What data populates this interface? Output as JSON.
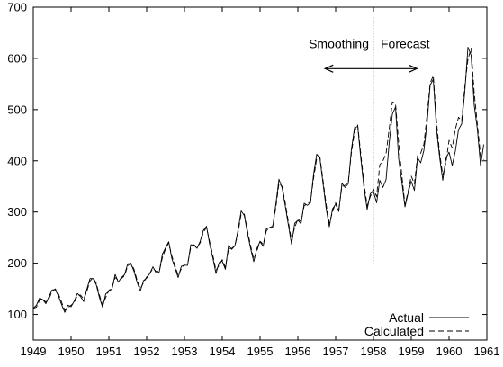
{
  "chart_data": {
    "type": "line",
    "title": "",
    "xlabel": "",
    "ylabel": "",
    "xlim": [
      1949,
      1961
    ],
    "ylim": [
      50,
      700
    ],
    "x_ticks": [
      "1949",
      "1950",
      "1951",
      "1952",
      "1953",
      "1954",
      "1955",
      "1956",
      "1957",
      "1958",
      "1959",
      "1960",
      "1961"
    ],
    "y_ticks": [
      "100",
      "200",
      "300",
      "400",
      "500",
      "600",
      "700"
    ],
    "legend_position": "bottom-right",
    "x_start": 1949,
    "x_step": 0.0833333,
    "series": [
      {
        "name": "Actual",
        "style": "solid",
        "values": [
          112,
          118,
          132,
          129,
          121,
          135,
          148,
          148,
          136,
          119,
          104,
          118,
          115,
          126,
          141,
          135,
          125,
          149,
          170,
          170,
          158,
          133,
          114,
          140,
          145,
          150,
          178,
          163,
          172,
          178,
          199,
          199,
          184,
          162,
          146,
          166,
          171,
          180,
          193,
          181,
          183,
          218,
          230,
          242,
          209,
          191,
          172,
          194,
          196,
          196,
          236,
          235,
          229,
          243,
          264,
          272,
          237,
          211,
          180,
          201,
          204,
          188,
          235,
          227,
          234,
          264,
          302,
          293,
          259,
          229,
          203,
          229,
          242,
          233,
          267,
          269,
          270,
          315,
          364,
          347,
          312,
          274,
          237,
          278,
          284,
          277,
          317,
          313,
          318,
          374,
          413,
          405,
          355,
          306,
          271,
          306,
          315,
          301,
          356,
          348,
          355,
          422,
          465,
          467,
          404,
          347,
          305,
          336,
          340,
          318,
          362,
          348,
          363,
          435,
          491,
          505,
          404,
          359,
          310,
          337,
          360,
          342,
          406,
          396,
          420,
          472,
          548,
          559,
          463,
          407,
          362,
          405,
          417,
          391,
          419,
          461,
          472,
          535,
          622,
          606,
          508,
          461,
          390,
          432
        ]
      },
      {
        "name": "Calculated",
        "style": "dashed",
        "values": [
          112,
          114,
          128,
          131,
          124,
          131,
          145,
          150,
          140,
          124,
          108,
          113,
          118,
          123,
          137,
          138,
          130,
          145,
          165,
          172,
          161,
          138,
          118,
          133,
          147,
          152,
          172,
          167,
          170,
          176,
          195,
          200,
          188,
          166,
          150,
          162,
          173,
          180,
          190,
          184,
          184,
          211,
          228,
          240,
          214,
          195,
          176,
          189,
          198,
          199,
          230,
          236,
          231,
          240,
          260,
          270,
          242,
          216,
          186,
          196,
          207,
          192,
          228,
          229,
          234,
          259,
          296,
          296,
          264,
          234,
          208,
          224,
          243,
          237,
          263,
          270,
          272,
          308,
          356,
          350,
          318,
          280,
          244,
          270,
          286,
          281,
          312,
          316,
          320,
          366,
          405,
          408,
          362,
          314,
          278,
          300,
          318,
          305,
          350,
          352,
          358,
          415,
          458,
          470,
          412,
          356,
          312,
          330,
          345,
          330,
          392,
          400,
          414,
          462,
          515,
          512,
          435,
          372,
          314,
          340,
          370,
          355,
          410,
          415,
          432,
          488,
          552,
          566,
          478,
          415,
          372,
          396,
          440,
          425,
          462,
          485,
          478,
          545,
          598,
          620,
          532,
          470,
          410,
          402
        ]
      }
    ],
    "annotations": {
      "smoothing_label": "Smoothing",
      "forecast_label": "Forecast",
      "divider_x": 1958
    }
  }
}
